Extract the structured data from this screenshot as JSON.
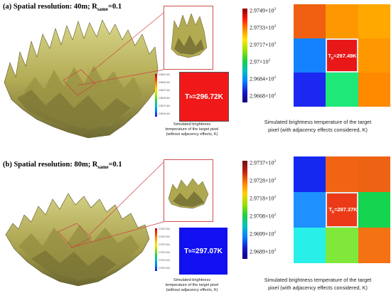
{
  "panels": [
    {
      "id": "a",
      "label": "(a) Spatial resolution: 40m; R",
      "label_sub": "same",
      "label_tail": "=0.1",
      "small_legend_ticks": [
        "2.9637×10²",
        "2.9632×10²",
        "2.9627×10²",
        "2.9622×10²",
        "2.9617×10²",
        "2.9612×10²"
      ],
      "tb_prefix": "T",
      "tb_sub": "b",
      "tb_value": "=296.72K",
      "tb_color": "#f01818",
      "small_caption": [
        "Simulated brightness",
        "temperature of the target pixel",
        "(without adjacency effects, K)"
      ],
      "big_legend": {
        "ticks": [
          "2.9749×10",
          "2.9733×10",
          "2.9717×10",
          "2.97×10",
          "2.9684×10",
          "2.9668×10"
        ],
        "exp": "2"
      },
      "grid_colors": [
        "#f06010",
        "#ff9800",
        "#ffa800",
        "#1482ff",
        "#e81818",
        "#ff9800",
        "#1c28f0",
        "#1ee878",
        "#ff8a00"
      ],
      "center_prefix": "T",
      "center_sub": "b",
      "center_value": "=297.49K",
      "big_caption": [
        "Simulated brightness temperature of the target",
        "pixel (with adjacency effects considered, K)"
      ]
    },
    {
      "id": "b",
      "label": "(b) Spatial resolution: 80m; R",
      "label_sub": "same",
      "label_tail": "=0.1",
      "small_legend_ticks": [
        "2.9707×10²",
        "2.9707×10²",
        "2.9707×10²",
        "2.9707×10²",
        "2.9707×10²",
        "2.9707×10²"
      ],
      "tb_prefix": "T",
      "tb_sub": "b",
      "tb_value": "=297.07K",
      "tb_color": "#1010f0",
      "small_caption": [
        "Simulated brightness",
        "temperature of the target pixel",
        "(without adjacency effects, K)"
      ],
      "big_legend": {
        "ticks": [
          "2.9737×10",
          "2.9728×10",
          "2.9718×10",
          "2.9708×10",
          "2.9699×10",
          "2.9689×10"
        ],
        "exp": "2"
      },
      "grid_colors": [
        "#1428f0",
        "#f26414",
        "#ee6214",
        "#1e90ff",
        "#ec3a18",
        "#14d450",
        "#28f0e8",
        "#80e83a",
        "#f47214"
      ],
      "center_prefix": "T",
      "center_sub": "b",
      "center_value": "=297.37K",
      "big_caption": [
        "Simulated brightness temperature of the target",
        "pixel (with adjacency effects considered, K)"
      ]
    }
  ],
  "colors": {
    "terrain_light": "#c9c774",
    "terrain_mid": "#a89f4a",
    "terrain_dark": "#6b6a32",
    "inset_border": "#d05050",
    "zoom_line": "#d04040"
  }
}
